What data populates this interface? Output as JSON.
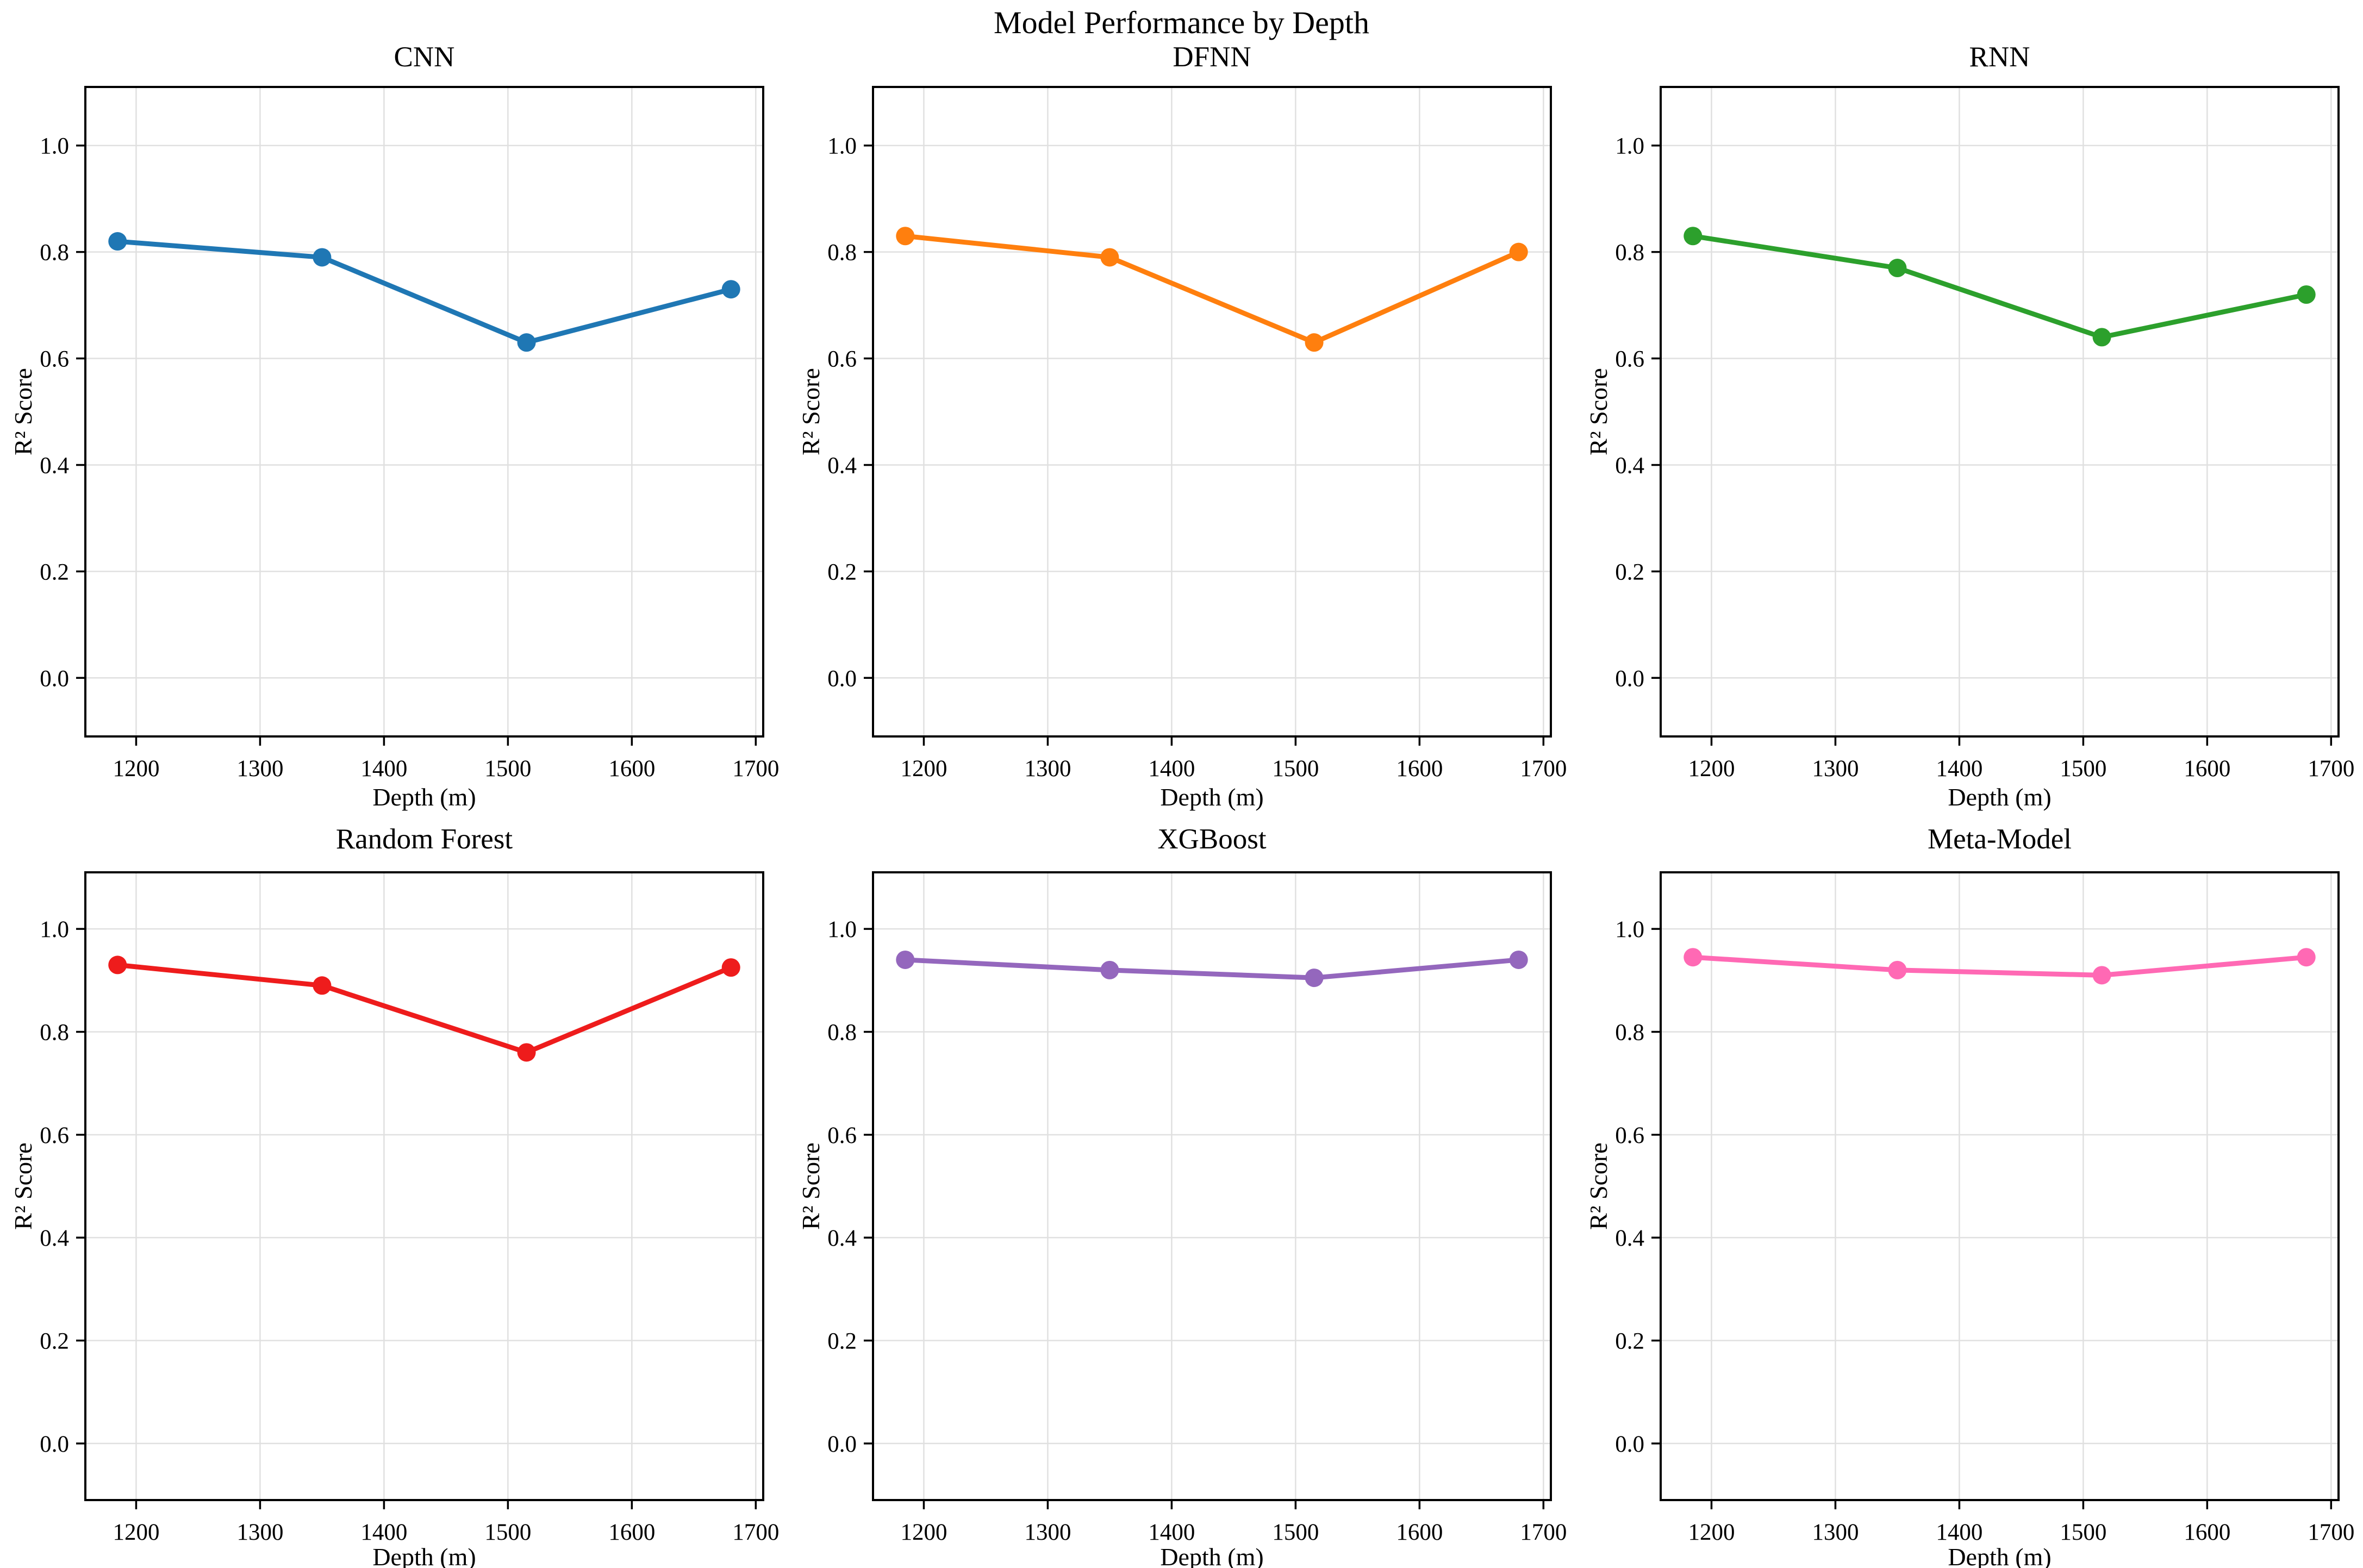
{
  "figure": {
    "title": "Model Performance by Depth"
  },
  "axes": {
    "xlabel": "Depth (m)",
    "ylabel": "R² Score",
    "xlim": [
      1159,
      1706
    ],
    "ylim": [
      -0.11,
      1.11
    ],
    "xticks": [
      1200,
      1300,
      1400,
      1500,
      1600,
      1700
    ],
    "xticklabels": [
      "1200",
      "1300",
      "1400",
      "1500",
      "1600",
      "1700"
    ],
    "yticks": [
      0.0,
      0.2,
      0.4,
      0.6,
      0.8,
      1.0
    ],
    "yticklabels": [
      "0.0",
      "0.2",
      "0.4",
      "0.6",
      "0.8",
      "1.0"
    ],
    "grid": true,
    "grid_color": "#e0e0e0",
    "spine_color": "#000000",
    "background": "#ffffff"
  },
  "chart_data": [
    {
      "type": "line",
      "title": "CNN",
      "color": "#1f77b4",
      "x": [
        1185,
        1350,
        1515,
        1680
      ],
      "values": [
        0.82,
        0.79,
        0.63,
        0.73
      ],
      "xlabel": "Depth (m)",
      "ylabel": "R² Score"
    },
    {
      "type": "line",
      "title": "DFNN",
      "color": "#ff7f0e",
      "x": [
        1185,
        1350,
        1515,
        1680
      ],
      "values": [
        0.83,
        0.79,
        0.63,
        0.8
      ],
      "xlabel": "Depth (m)",
      "ylabel": "R² Score"
    },
    {
      "type": "line",
      "title": "RNN",
      "color": "#2ca02c",
      "x": [
        1185,
        1350,
        1515,
        1680
      ],
      "values": [
        0.83,
        0.77,
        0.64,
        0.72
      ],
      "xlabel": "Depth (m)",
      "ylabel": "R² Score"
    },
    {
      "type": "line",
      "title": "Random Forest",
      "color": "#ee1c1c",
      "x": [
        1185,
        1350,
        1515,
        1680
      ],
      "values": [
        0.93,
        0.89,
        0.76,
        0.925
      ],
      "xlabel": "Depth (m)",
      "ylabel": "R² Score"
    },
    {
      "type": "line",
      "title": "XGBoost",
      "color": "#9467bd",
      "x": [
        1185,
        1350,
        1515,
        1680
      ],
      "values": [
        0.94,
        0.92,
        0.905,
        0.94
      ],
      "xlabel": "Depth (m)",
      "ylabel": "R² Score"
    },
    {
      "type": "line",
      "title": "Meta-Model",
      "color": "#ff69b4",
      "x": [
        1185,
        1350,
        1515,
        1680
      ],
      "values": [
        0.945,
        0.92,
        0.91,
        0.945
      ],
      "xlabel": "Depth (m)",
      "ylabel": "R² Score"
    }
  ]
}
